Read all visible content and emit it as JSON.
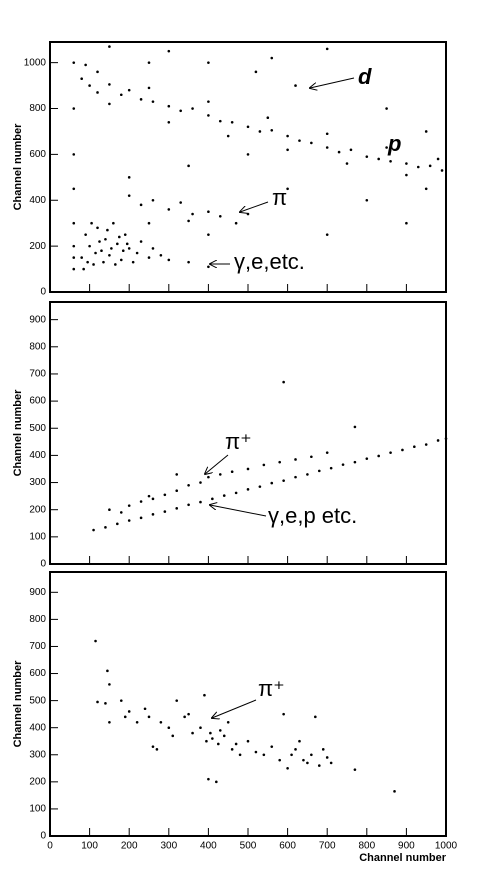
{
  "chart_data": [
    {
      "type": "scatter",
      "ylabel": "Channel number",
      "xlim": [
        0,
        1000
      ],
      "ylim": [
        0,
        1090
      ],
      "xticks": [
        0,
        100,
        200,
        300,
        400,
        500,
        600,
        700,
        800,
        900,
        1000
      ],
      "show_xtick_labels": false,
      "yticks": [
        0,
        200,
        400,
        600,
        800,
        1000
      ],
      "annotations": [
        "d",
        "p",
        "π",
        "γ,e,etc."
      ],
      "series": [
        {
          "color": "#000000",
          "x": [
            80,
            100,
            120,
            150,
            180,
            200,
            230,
            260,
            300,
            330,
            360,
            400,
            430,
            460,
            500,
            530,
            560,
            600,
            630,
            660,
            700,
            730,
            760,
            800,
            830,
            860,
            900,
            930,
            960,
            990,
            90,
            120,
            250,
            400,
            550,
            700,
            850,
            980,
            150,
            300,
            450,
            600,
            750,
            900,
            150,
            300,
            400,
            520,
            620,
            700,
            850,
            950,
            560,
            250,
            200,
            350,
            600,
            800,
            900,
            700,
            500,
            950,
            400,
            200,
            230,
            260,
            300,
            330,
            360,
            400,
            430,
            470,
            500,
            250,
            350,
            80,
            90,
            100,
            110,
            120,
            130,
            140,
            150,
            160,
            170,
            180,
            190,
            200,
            220,
            250,
            280,
            300,
            350,
            400,
            85,
            95,
            105,
            115,
            125,
            135,
            145,
            155,
            165,
            175,
            185,
            195,
            210,
            230,
            260,
            60,
            60,
            60,
            60,
            60,
            60,
            60,
            60
          ],
          "values": [
            930,
            900,
            870,
            905,
            860,
            880,
            840,
            830,
            810,
            790,
            800,
            770,
            745,
            740,
            720,
            700,
            705,
            680,
            660,
            650,
            630,
            610,
            620,
            590,
            580,
            570,
            560,
            545,
            550,
            530,
            990,
            960,
            890,
            830,
            760,
            690,
            630,
            580,
            820,
            740,
            680,
            620,
            560,
            510,
            1070,
            1050,
            1000,
            960,
            900,
            1060,
            800,
            700,
            1020,
            1000,
            500,
            550,
            450,
            400,
            300,
            250,
            600,
            450,
            250,
            420,
            380,
            400,
            360,
            390,
            340,
            350,
            330,
            300,
            340,
            300,
            310,
            150,
            250,
            200,
            120,
            280,
            180,
            230,
            160,
            300,
            210,
            140,
            250,
            190,
            170,
            150,
            160,
            140,
            130,
            110,
            100,
            130,
            300,
            170,
            220,
            130,
            270,
            190,
            120,
            240,
            180,
            210,
            130,
            220,
            190,
            100,
            200,
            300,
            450,
            600,
            800,
            1000,
            150
          ]
        }
      ]
    },
    {
      "type": "scatter",
      "ylabel": "Channel number",
      "xlim": [
        0,
        1000
      ],
      "ylim": [
        0,
        965
      ],
      "xticks": [
        0,
        100,
        200,
        300,
        400,
        500,
        600,
        700,
        800,
        900,
        1000
      ],
      "show_xtick_labels": false,
      "yticks": [
        0,
        100,
        200,
        300,
        400,
        500,
        600,
        700,
        800,
        900
      ],
      "annotations": [
        "π⁺",
        "γ,e,p etc."
      ],
      "series": [
        {
          "color": "#000000",
          "x": [
            110,
            140,
            170,
            200,
            230,
            260,
            290,
            320,
            350,
            380,
            410,
            440,
            470,
            500,
            530,
            560,
            590,
            620,
            650,
            680,
            710,
            740,
            770,
            800,
            830,
            860,
            890,
            920,
            950,
            980,
            1000,
            150,
            180,
            200,
            230,
            260,
            290,
            320,
            350,
            380,
            400,
            430,
            460,
            500,
            540,
            580,
            620,
            660,
            700,
            590,
            770,
            320,
            250
          ],
          "values": [
            125,
            135,
            148,
            160,
            170,
            183,
            193,
            205,
            218,
            228,
            240,
            252,
            262,
            275,
            285,
            298,
            307,
            320,
            330,
            343,
            353,
            366,
            375,
            388,
            398,
            410,
            420,
            432,
            440,
            455,
            462,
            200,
            190,
            215,
            230,
            240,
            255,
            270,
            290,
            300,
            320,
            330,
            340,
            350,
            365,
            375,
            385,
            395,
            410,
            670,
            505,
            330,
            250
          ]
        }
      ]
    },
    {
      "type": "scatter",
      "ylabel": "Channel number",
      "xlabel": "Channel number",
      "xlim": [
        0,
        1000
      ],
      "ylim": [
        0,
        975
      ],
      "xticks": [
        0,
        100,
        200,
        300,
        400,
        500,
        600,
        700,
        800,
        900,
        1000
      ],
      "show_xtick_labels": true,
      "yticks": [
        0,
        100,
        200,
        300,
        400,
        500,
        600,
        700,
        800,
        900
      ],
      "annotations": [
        "π⁺"
      ],
      "series": [
        {
          "color": "#000000",
          "x": [
            115,
            120,
            140,
            145,
            150,
            150,
            180,
            190,
            200,
            220,
            240,
            250,
            260,
            270,
            280,
            300,
            310,
            320,
            340,
            350,
            360,
            380,
            390,
            395,
            400,
            405,
            410,
            420,
            425,
            430,
            440,
            450,
            460,
            470,
            480,
            500,
            520,
            540,
            560,
            580,
            590,
            600,
            610,
            620,
            640,
            650,
            660,
            670,
            680,
            700,
            710,
            770,
            870,
            630,
            690
          ],
          "values": [
            720,
            495,
            490,
            610,
            560,
            420,
            500,
            440,
            460,
            420,
            470,
            440,
            330,
            320,
            420,
            400,
            370,
            500,
            440,
            450,
            380,
            400,
            520,
            350,
            210,
            380,
            360,
            200,
            340,
            390,
            370,
            420,
            320,
            340,
            300,
            350,
            310,
            300,
            330,
            280,
            450,
            250,
            300,
            320,
            280,
            270,
            300,
            440,
            260,
            290,
            270,
            245,
            165,
            350,
            320
          ]
        }
      ]
    }
  ]
}
